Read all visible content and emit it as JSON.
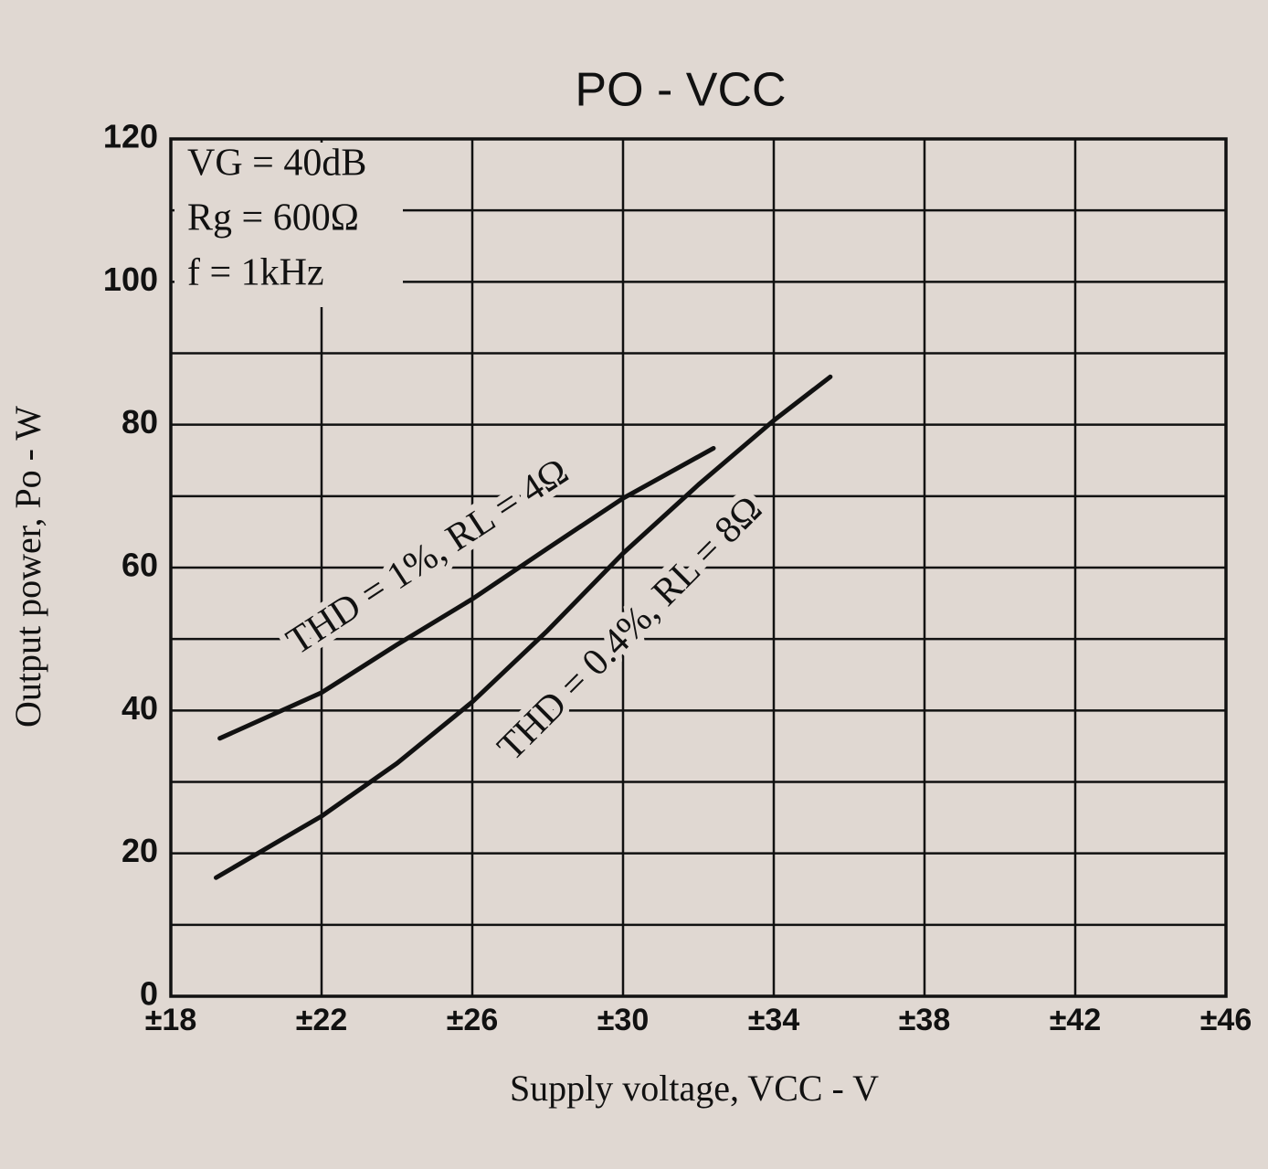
{
  "chart_data": {
    "type": "line",
    "title": "PO - VCC",
    "x_label": "Supply voltage, VCC - V",
    "y_label": "Output power, Po - W",
    "annotations": [
      "VG = 40dB",
      "Rg = 600Ω",
      "f = 1kHz"
    ],
    "xlim": [
      18,
      46
    ],
    "ylim": [
      0,
      120
    ],
    "xticks": [
      {
        "value": 18,
        "label": "±18"
      },
      {
        "value": 22,
        "label": "±22"
      },
      {
        "value": 26,
        "label": "±26"
      },
      {
        "value": 30,
        "label": "±30"
      },
      {
        "value": 34,
        "label": "±34"
      },
      {
        "value": 38,
        "label": "±38"
      },
      {
        "value": 42,
        "label": "±42"
      },
      {
        "value": 46,
        "label": "±46"
      }
    ],
    "yticks": [
      0,
      20,
      40,
      60,
      80,
      100,
      120
    ],
    "minor_yticks": [
      10,
      30,
      50,
      70,
      90,
      110
    ],
    "grid": true,
    "series": [
      {
        "name": "THD = 1%, RL = 4Ω",
        "color": "#111111",
        "x": [
          19.3,
          22,
          24,
          26,
          28,
          30,
          32.4
        ],
        "values": [
          36.1,
          42.5,
          49.2,
          55.6,
          62.7,
          69.7,
          76.7
        ]
      },
      {
        "name": "THD = 0.4%, RL = 8Ω",
        "color": "#111111",
        "x": [
          19.2,
          22,
          24,
          26,
          28,
          30,
          32,
          34,
          35.5
        ],
        "values": [
          16.6,
          25.2,
          32.6,
          41.2,
          51.2,
          62,
          71.6,
          80.6,
          86.7
        ]
      }
    ]
  }
}
